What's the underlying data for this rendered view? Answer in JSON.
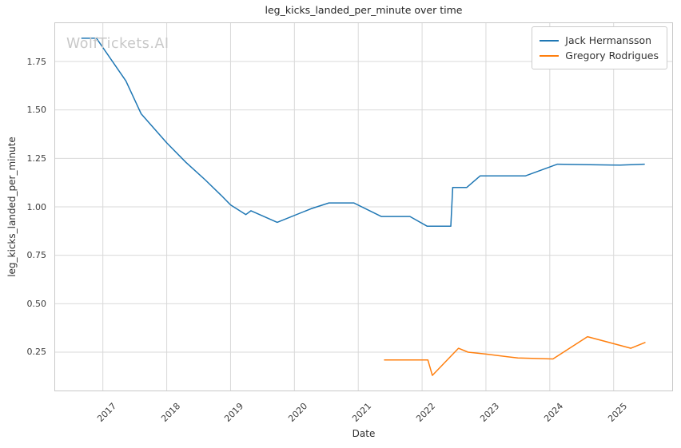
{
  "figure": {
    "watermark": "WolfTickets.AI"
  },
  "style": {
    "background": "#ffffff",
    "grid_color": "#d9d9d9",
    "spine_color": "#c9c9c9",
    "title_color": "#262626",
    "tick_color": "#3c3c3c",
    "watermark_color": "#c8c8c8"
  },
  "chart_data": {
    "type": "line",
    "title": "leg_kicks_landed_per_minute over time",
    "xlabel": "Date",
    "ylabel": "leg_kicks_landed_per_minute",
    "xlim": [
      2016.24,
      2025.93
    ],
    "ylim": [
      0.048,
      1.952
    ],
    "grid": true,
    "legend": {
      "position": "upper right",
      "entries": [
        "Jack Hermansson",
        "Gregory Rodrigues"
      ]
    },
    "x_ticks": [
      {
        "value": 2017,
        "label": "2017"
      },
      {
        "value": 2018,
        "label": "2018"
      },
      {
        "value": 2019,
        "label": "2019"
      },
      {
        "value": 2020,
        "label": "2020"
      },
      {
        "value": 2021,
        "label": "2021"
      },
      {
        "value": 2022,
        "label": "2022"
      },
      {
        "value": 2023,
        "label": "2023"
      },
      {
        "value": 2024,
        "label": "2024"
      },
      {
        "value": 2025,
        "label": "2025"
      }
    ],
    "y_ticks": [
      {
        "value": 0.25,
        "label": "0.25"
      },
      {
        "value": 0.5,
        "label": "0.50"
      },
      {
        "value": 0.75,
        "label": "0.75"
      },
      {
        "value": 1.0,
        "label": "1.00"
      },
      {
        "value": 1.25,
        "label": "1.25"
      },
      {
        "value": 1.5,
        "label": "1.50"
      },
      {
        "value": 1.75,
        "label": "1.75"
      }
    ],
    "series": [
      {
        "name": "Jack Hermansson",
        "color": "#1f77b4",
        "points": [
          [
            2016.67,
            1.87
          ],
          [
            2016.9,
            1.87
          ],
          [
            2017.36,
            1.65
          ],
          [
            2017.6,
            1.48
          ],
          [
            2018.0,
            1.33
          ],
          [
            2018.3,
            1.23
          ],
          [
            2018.6,
            1.14
          ],
          [
            2018.85,
            1.06
          ],
          [
            2019.0,
            1.01
          ],
          [
            2019.24,
            0.96
          ],
          [
            2019.32,
            0.98
          ],
          [
            2019.73,
            0.92
          ],
          [
            2020.26,
            0.99
          ],
          [
            2020.54,
            1.02
          ],
          [
            2020.93,
            1.02
          ],
          [
            2021.36,
            0.95
          ],
          [
            2021.81,
            0.95
          ],
          [
            2022.08,
            0.9
          ],
          [
            2022.45,
            0.9
          ],
          [
            2022.48,
            1.1
          ],
          [
            2022.7,
            1.1
          ],
          [
            2022.91,
            1.16
          ],
          [
            2023.62,
            1.16
          ],
          [
            2024.12,
            1.22
          ],
          [
            2025.1,
            1.215
          ],
          [
            2025.48,
            1.22
          ]
        ]
      },
      {
        "name": "Gregory Rodrigues",
        "color": "#ff7f0e",
        "points": [
          [
            2021.41,
            0.21
          ],
          [
            2022.09,
            0.21
          ],
          [
            2022.16,
            0.13
          ],
          [
            2022.57,
            0.27
          ],
          [
            2022.72,
            0.25
          ],
          [
            2023.0,
            0.24
          ],
          [
            2023.5,
            0.22
          ],
          [
            2024.05,
            0.215
          ],
          [
            2024.59,
            0.33
          ],
          [
            2025.27,
            0.27
          ],
          [
            2025.49,
            0.3
          ]
        ]
      }
    ]
  }
}
